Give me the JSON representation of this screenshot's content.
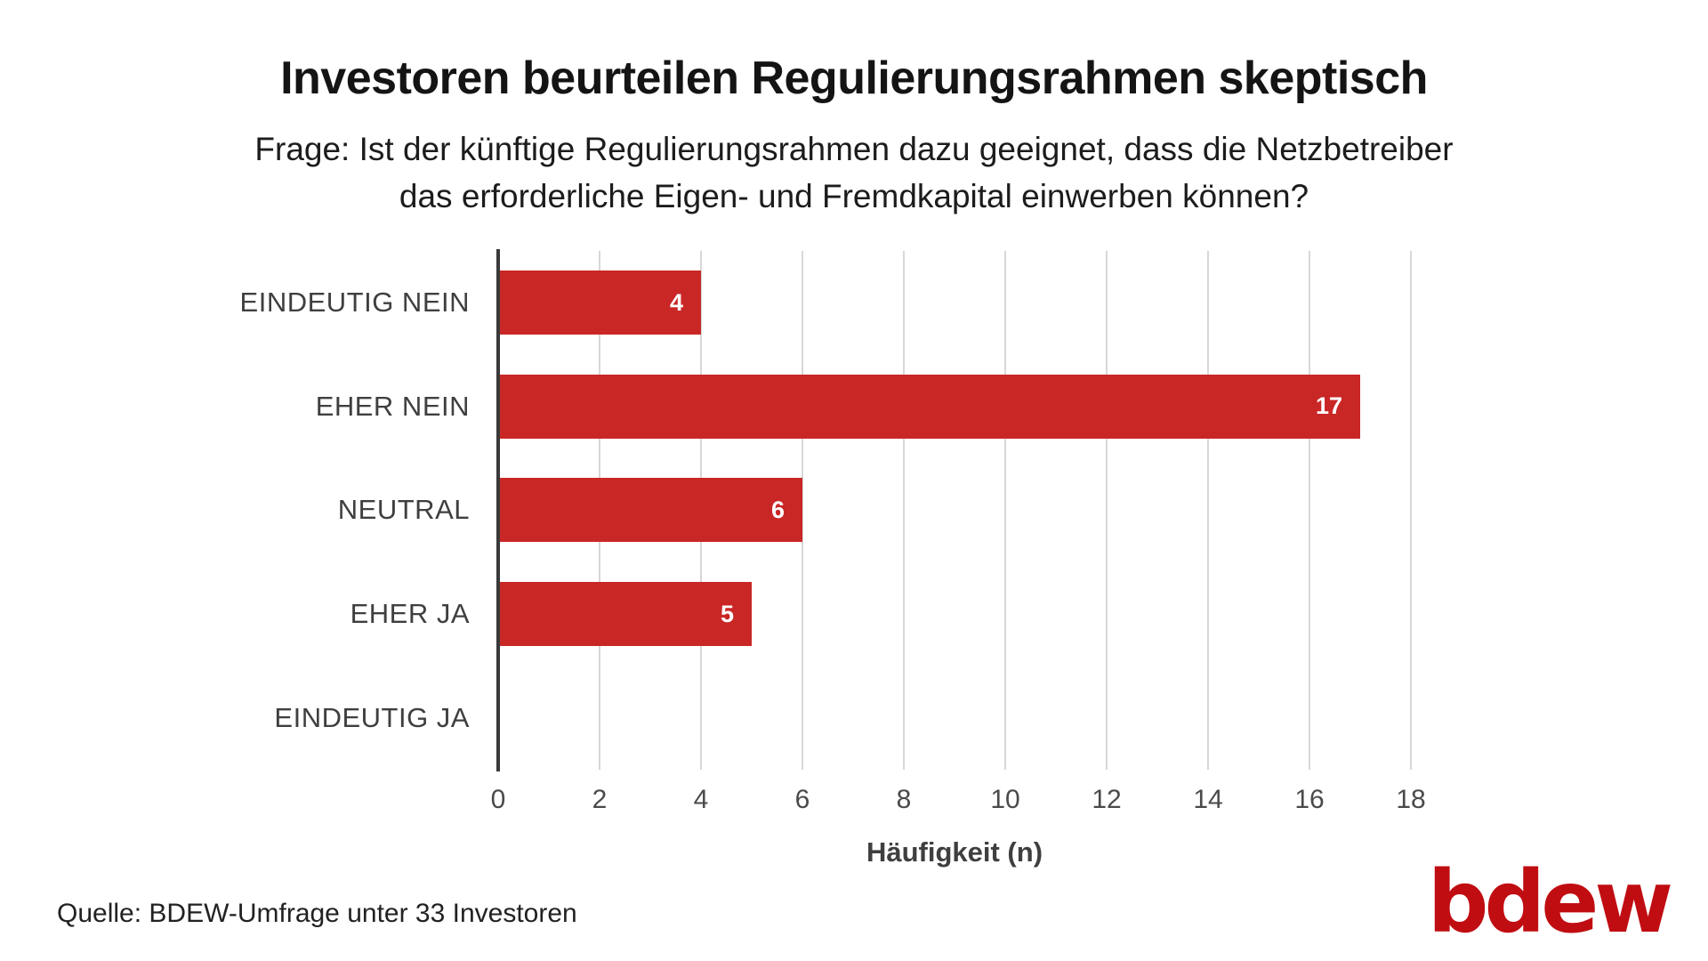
{
  "header": {
    "title": "Investoren beurteilen Regulierungsrahmen skeptisch",
    "subtitle_line1": "Frage: Ist der künftige Regulierungsrahmen dazu geeignet, dass die Netzbetreiber",
    "subtitle_line2": "das erforderliche Eigen- und Fremdkapital einwerben können?"
  },
  "chart_data": {
    "type": "bar",
    "orientation": "horizontal",
    "title": "Investoren beurteilen Regulierungsrahmen skeptisch",
    "categories": [
      "EINDEUTIG NEIN",
      "EHER NEIN",
      "NEUTRAL",
      "EHER JA",
      "EINDEUTIG JA"
    ],
    "values": [
      4,
      17,
      6,
      5,
      0
    ],
    "xlabel": "Häufigkeit (n)",
    "ylabel": "",
    "xticks": [
      0,
      2,
      4,
      6,
      8,
      10,
      12,
      14,
      16,
      18
    ],
    "xlim": [
      0,
      18
    ],
    "grid": true,
    "legend": false,
    "bar_color": "#c92726",
    "value_label_color": "#ffffff",
    "gridline_color": "#d7d7d7",
    "axis_color": "#3a3a3a"
  },
  "footer": {
    "source": "Quelle: BDEW-Umfrage unter 33 Investoren",
    "logo_text": "bdew",
    "logo_color": "#c00d12"
  }
}
